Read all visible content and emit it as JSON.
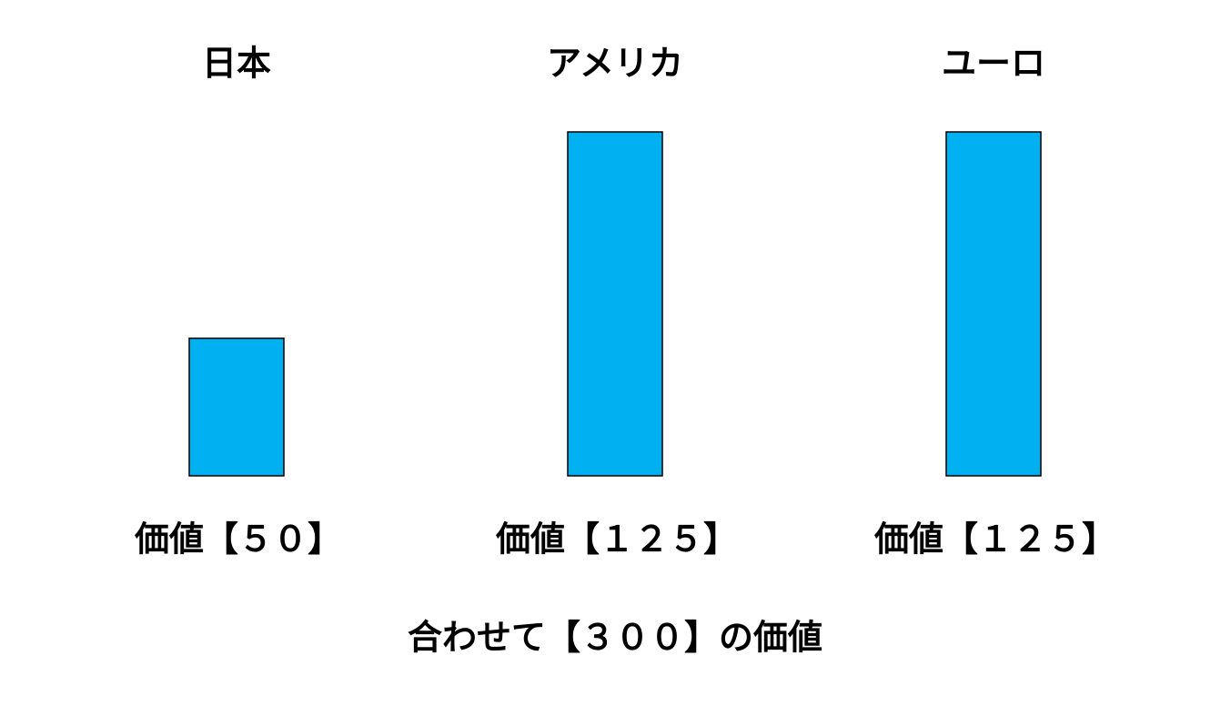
{
  "chart_data": {
    "type": "bar",
    "categories": [
      "日本",
      "アメリカ",
      "ユーロ"
    ],
    "values": [
      50,
      125,
      125
    ],
    "value_labels": [
      "価値【５０】",
      "価値【１２５】",
      "価値【１２５】"
    ],
    "color": "#00b0f0",
    "annotation": "合わせて【３００】の価値"
  }
}
